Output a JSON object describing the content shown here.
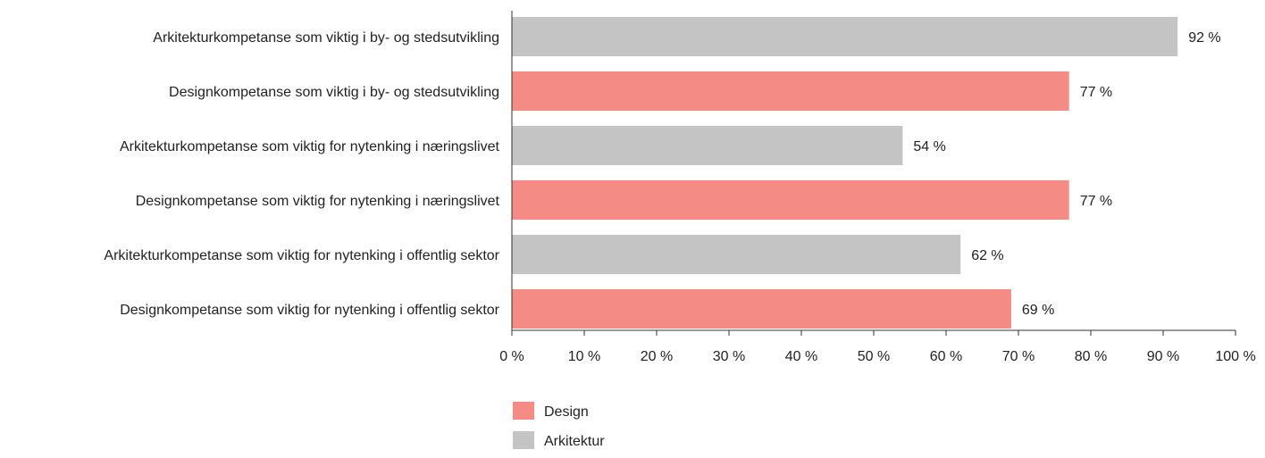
{
  "chart_data": {
    "type": "bar",
    "orientation": "horizontal",
    "categories": [
      "Arkitekturkompetanse som viktig i by- og stedsutvikling",
      "Designkompetanse som viktig i by- og stedsutvikling ",
      "Arkitekturkompetanse som viktig for nytenking i næringslivet",
      "Designkompetanse som viktig for nytenking i næringslivet",
      "Arkitekturkompetanse som viktig for nytenking i offentlig sektor",
      "Designkompetanse som viktig for nytenking i offentlig sektor"
    ],
    "values": [
      92,
      77,
      54,
      77,
      62,
      69
    ],
    "value_labels": [
      "92 %",
      "77 %",
      "54 %",
      "77 %",
      "62 %",
      "69 %"
    ],
    "bar_series": [
      "Arkitektur",
      "Design",
      "Arkitektur",
      "Design",
      "Arkitektur",
      "Design"
    ],
    "xlim": [
      0,
      100
    ],
    "x_ticks": [
      0,
      10,
      20,
      30,
      40,
      50,
      60,
      70,
      80,
      90,
      100
    ],
    "x_tick_labels": [
      "0 %",
      "10 %",
      "20 %",
      "30 %",
      "40 %",
      "50 %",
      "60 %",
      "70 %",
      "80 %",
      "90 %",
      "100 %"
    ],
    "grid": false,
    "legend_position": "bottom-left",
    "legend": [
      {
        "name": "Design",
        "color": "#f48b85"
      },
      {
        "name": "Arkitektur",
        "color": "#c4c4c4"
      }
    ],
    "colors": {
      "Design": "#f48b85",
      "Arkitektur": "#c4c4c4",
      "axis": "#333333",
      "text": "#222222"
    }
  }
}
